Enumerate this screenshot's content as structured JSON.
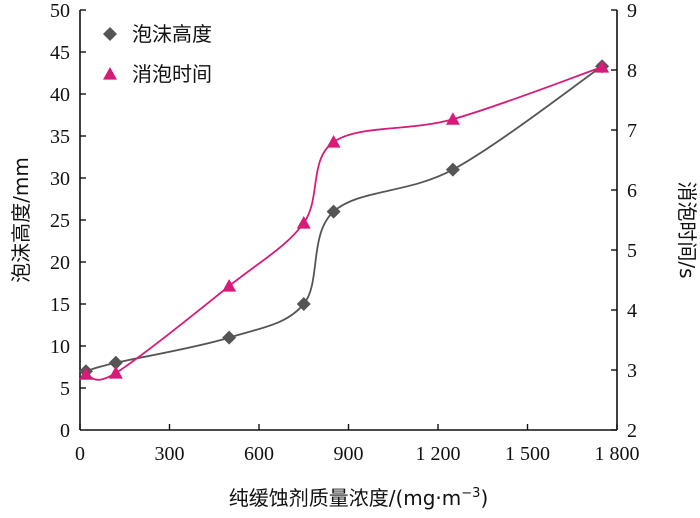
{
  "chart_data": {
    "type": "line",
    "xlabel": "纯缓蚀剂质量浓度/(mg·m",
    "xlabel_sup": "−3",
    "xlabel_close": ")",
    "ylabel_left": "泡沫高度/mm",
    "ylabel_right": "消泡时间/s",
    "xlim": [
      0,
      1800
    ],
    "ylim_left": [
      0,
      50
    ],
    "ylim_right": [
      2,
      9
    ],
    "x_ticks": [
      0,
      300,
      600,
      900,
      1200,
      1500,
      1800
    ],
    "x_tick_labels": [
      "0",
      "300",
      "600",
      "900",
      "1 200",
      "1 500",
      "1 800"
    ],
    "y_left_ticks": [
      5,
      10,
      15,
      20,
      25,
      30,
      35,
      40,
      45,
      50
    ],
    "y_right_ticks": [
      2,
      3,
      4,
      5,
      6,
      7,
      8,
      9
    ],
    "grid": false,
    "legend_position": "top-left",
    "series": [
      {
        "name": "泡沫高度",
        "axis": "left",
        "marker": "diamond",
        "color": "#555555",
        "smooth": true,
        "points": [
          [
            20,
            7
          ],
          [
            120,
            8
          ],
          [
            500,
            11
          ],
          [
            750,
            15
          ],
          [
            850,
            26
          ],
          [
            1250,
            31
          ],
          [
            1750,
            43.3
          ]
        ]
      },
      {
        "name": "消泡时间",
        "axis": "right",
        "marker": "triangle",
        "color": "#d81b78",
        "smooth": true,
        "points": [
          [
            20,
            2.93
          ],
          [
            120,
            2.95
          ],
          [
            500,
            4.4
          ],
          [
            750,
            5.45
          ],
          [
            850,
            6.8
          ],
          [
            1250,
            7.18
          ],
          [
            1750,
            8.05
          ]
        ]
      }
    ]
  }
}
